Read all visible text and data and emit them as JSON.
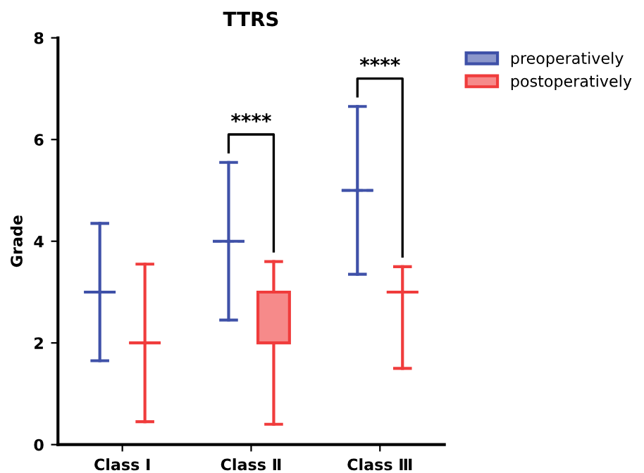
{
  "chart_data": {
    "type": "box",
    "title": "TTRS",
    "ylabel": "Grade",
    "categories": [
      "Class Ⅰ",
      "Class Ⅱ",
      "Class Ⅲ"
    ],
    "series": [
      {
        "name": "preoperatively",
        "color": "#3f51a8",
        "boxes": [
          {
            "low": 1.65,
            "q1": 3,
            "median": 3,
            "q3": 3,
            "high": 4.35
          },
          {
            "low": 2.45,
            "q1": 4,
            "median": 4,
            "q3": 4,
            "high": 5.55
          },
          {
            "low": 3.35,
            "q1": 5,
            "median": 5,
            "q3": 5,
            "high": 6.65
          }
        ]
      },
      {
        "name": "postoperatively",
        "color": "#f03c3c",
        "boxes": [
          {
            "low": 0.45,
            "q1": 2,
            "median": 2,
            "q3": 2,
            "high": 3.55
          },
          {
            "low": 0.4,
            "q1": 2,
            "median": 2,
            "q3": 3,
            "high": 3.6
          },
          {
            "low": 1.5,
            "q1": 3,
            "median": 3,
            "q3": 3,
            "high": 3.5
          }
        ]
      }
    ],
    "annotations": [
      "****",
      "****"
    ],
    "ylim": [
      0,
      8
    ],
    "yticks": [
      0,
      2,
      4,
      6,
      8
    ],
    "grid": false,
    "legend": "top right"
  }
}
